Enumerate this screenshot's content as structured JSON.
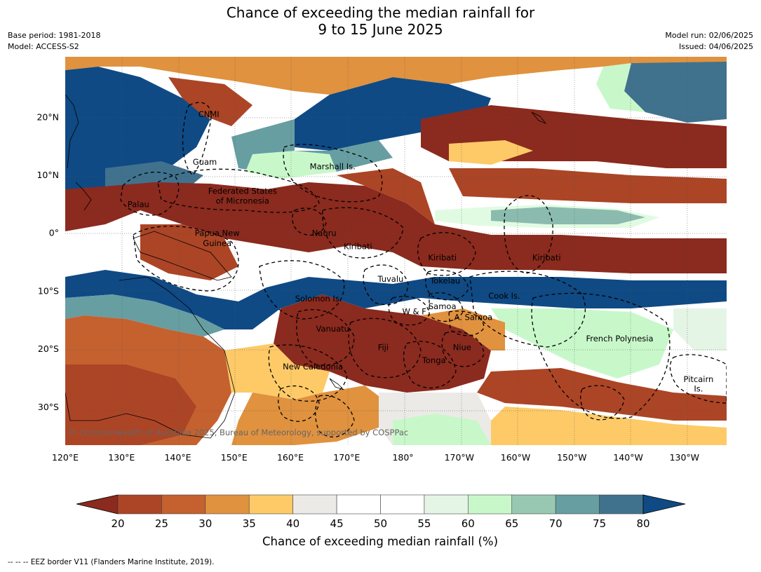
{
  "title": {
    "line1": "Chance of exceeding the median rainfall for",
    "line2": "9 to 15 June 2025"
  },
  "meta": {
    "base_period": "Base period: 1981-2018",
    "model": "Model: ACCESS-S2",
    "model_run": "Model run: 02/06/2025",
    "issued": "Issued: 04/06/2025"
  },
  "map": {
    "extent": {
      "lon_min": 120,
      "lon_max": 237.5,
      "lat_min": -36.5,
      "lat_max": 30.5
    },
    "lat_ticks": [
      {
        "lat": 20,
        "label": "20°N"
      },
      {
        "lat": 10,
        "label": "10°N"
      },
      {
        "lat": 0,
        "label": "0°"
      },
      {
        "lat": -10,
        "label": "10°S"
      },
      {
        "lat": -20,
        "label": "20°S"
      },
      {
        "lat": -30,
        "label": "30°S"
      }
    ],
    "lon_ticks": [
      {
        "lon": 120,
        "label": "120°E"
      },
      {
        "lon": 130,
        "label": "130°E"
      },
      {
        "lon": 140,
        "label": "140°E"
      },
      {
        "lon": 150,
        "label": "150°E"
      },
      {
        "lon": 160,
        "label": "160°E"
      },
      {
        "lon": 170,
        "label": "170°E"
      },
      {
        "lon": 180,
        "label": "180°"
      },
      {
        "lon": 190,
        "label": "170°W"
      },
      {
        "lon": 200,
        "label": "160°W"
      },
      {
        "lon": 210,
        "label": "150°W"
      },
      {
        "lon": 220,
        "label": "140°W"
      },
      {
        "lon": 230,
        "label": "130°W"
      }
    ],
    "region_labels": [
      {
        "name": "CNMI",
        "lon": 145.5,
        "lat": 20.5
      },
      {
        "name": "Guam",
        "lon": 144.8,
        "lat": 12.3
      },
      {
        "name": "Marshall Is.",
        "lon": 167.5,
        "lat": 11.5
      },
      {
        "name": "Federated States",
        "lon": 151.5,
        "lat": 7.3
      },
      {
        "name": "of Micronesia",
        "lon": 151.5,
        "lat": 5.6
      },
      {
        "name": "Palau",
        "lon": 133.0,
        "lat": 5.0
      },
      {
        "name": "Papua New",
        "lon": 147.0,
        "lat": 0.0
      },
      {
        "name": "Guinea",
        "lon": 147.0,
        "lat": -1.7
      },
      {
        "name": "Nauru",
        "lon": 166.0,
        "lat": 0.0
      },
      {
        "name": "Kiribati",
        "lon": 172.0,
        "lat": -2.3
      },
      {
        "name": "Kiribati",
        "lon": 187.0,
        "lat": -4.2
      },
      {
        "name": "Kiribati",
        "lon": 205.5,
        "lat": -4.2
      },
      {
        "name": "Tuvalu",
        "lon": 177.8,
        "lat": -7.9
      },
      {
        "name": "Tokelau",
        "lon": 187.5,
        "lat": -8.2
      },
      {
        "name": "Cook Is.",
        "lon": 198.0,
        "lat": -10.8
      },
      {
        "name": "Solomon Is.",
        "lon": 165.0,
        "lat": -11.3
      },
      {
        "name": "W & F",
        "lon": 182.0,
        "lat": -13.5
      },
      {
        "name": "Samoa",
        "lon": 187.0,
        "lat": -12.6
      },
      {
        "name": "A. Samoa",
        "lon": 192.5,
        "lat": -14.5
      },
      {
        "name": "Vanuatu",
        "lon": 167.5,
        "lat": -16.5
      },
      {
        "name": "French Polynesia",
        "lon": 218.5,
        "lat": -18.2
      },
      {
        "name": "Fiji",
        "lon": 176.5,
        "lat": -19.7
      },
      {
        "name": "Niue",
        "lon": 190.5,
        "lat": -19.7
      },
      {
        "name": "Tonga",
        "lon": 185.5,
        "lat": -21.9
      },
      {
        "name": "New Caledonia",
        "lon": 164.0,
        "lat": -23.0
      },
      {
        "name": "Pitcairn",
        "lon": 232.5,
        "lat": -25.2
      },
      {
        "name": "Is.",
        "lon": 232.5,
        "lat": -26.8
      }
    ],
    "copyright": "© Commonwealth of Australia 2025, Bureau of Meteorology, supported by COSPPac"
  },
  "colorbar": {
    "title": "Chance of exceeding median rainfall (%)",
    "ticks": [
      "20",
      "25",
      "30",
      "35",
      "40",
      "45",
      "50",
      "55",
      "60",
      "65",
      "70",
      "75",
      "80"
    ],
    "under_color": "#8b2a1e",
    "over_color": "#0f4a84",
    "colors": [
      "#ab4526",
      "#c4612f",
      "#e0923f",
      "#fdca67",
      "#eceae6",
      "#ffffff",
      "#ffffff",
      "#e4f5e6",
      "#c8f8ca",
      "#98c8b2",
      "#679ea2",
      "#40728e"
    ]
  },
  "footer": "--  --  -- EEZ border V11 (Flanders Marine Institute, 2019)."
}
